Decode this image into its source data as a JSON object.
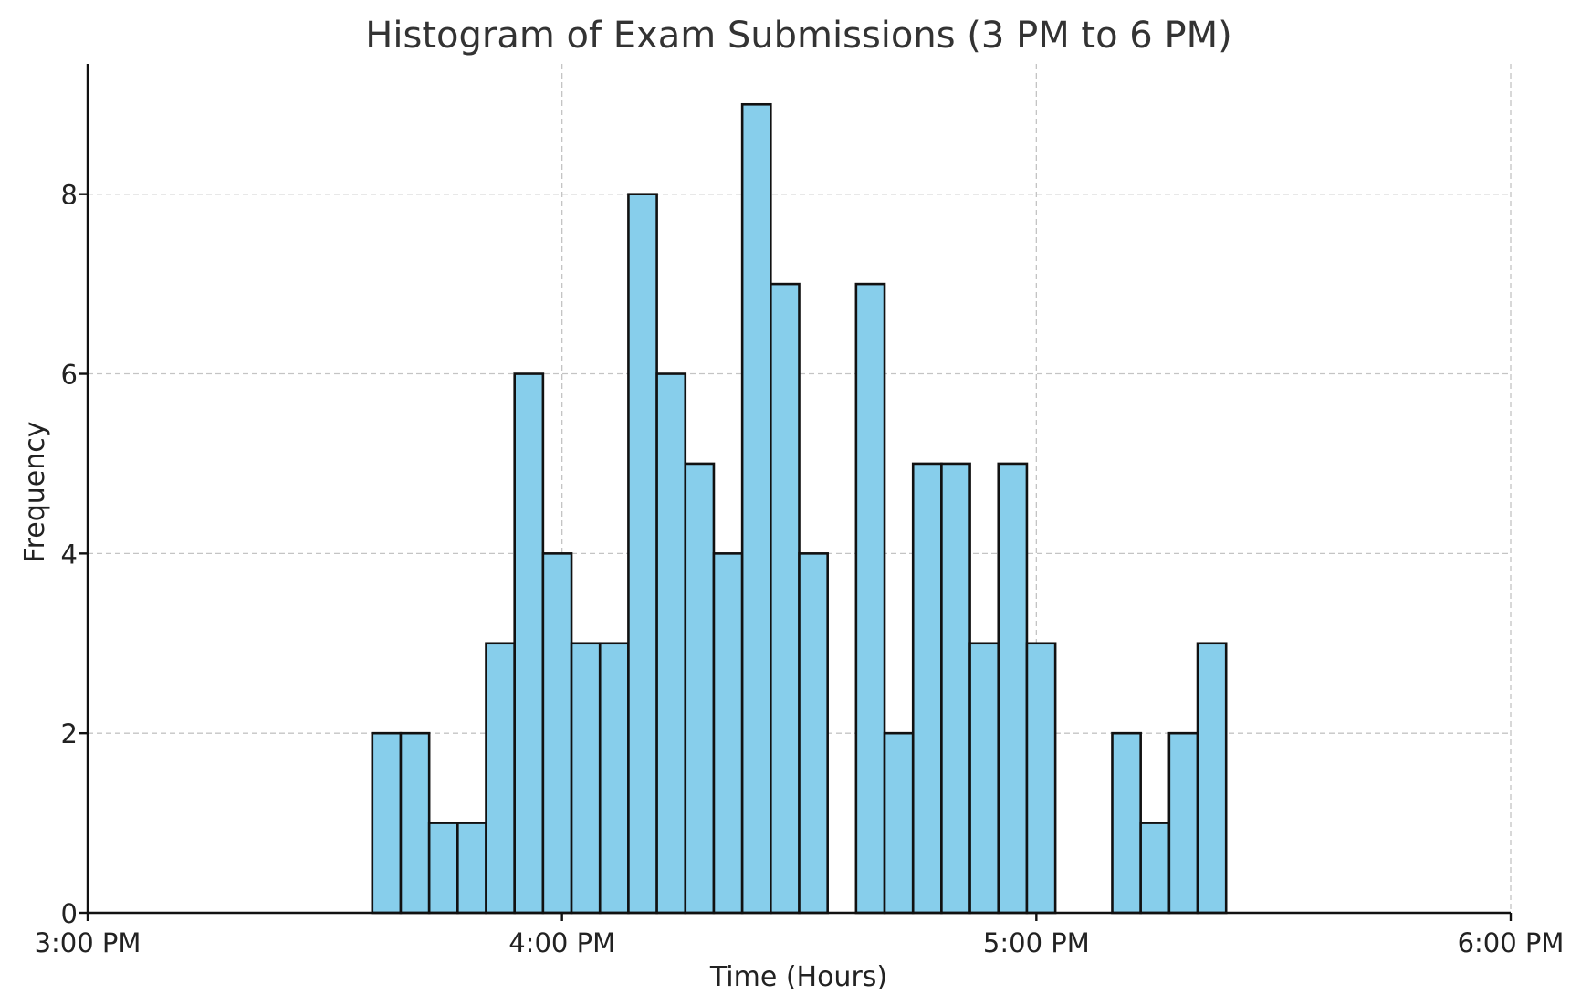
{
  "chart_data": {
    "type": "bar",
    "title": "Histogram of Exam Submissions (3 PM to 6 PM)",
    "xlabel": "Time (Hours)",
    "ylabel": "Frequency",
    "x_tick_labels": [
      "3:00 PM",
      "4:00 PM",
      "5:00 PM",
      "6:00 PM"
    ],
    "y_tick_labels": [
      "0",
      "2",
      "4",
      "6",
      "8"
    ],
    "xlim": [
      "15:00",
      "18:00"
    ],
    "ylim": [
      0,
      9.45
    ],
    "bin_width_minutes": 3.6,
    "bins": [
      {
        "start": "15:36",
        "count": 2
      },
      {
        "start": "15:39.6",
        "count": 2
      },
      {
        "start": "15:43.2",
        "count": 1
      },
      {
        "start": "15:46.8",
        "count": 1
      },
      {
        "start": "15:50.4",
        "count": 3
      },
      {
        "start": "15:54",
        "count": 6
      },
      {
        "start": "15:57.6",
        "count": 4
      },
      {
        "start": "16:01.2",
        "count": 3
      },
      {
        "start": "16:04.8",
        "count": 3
      },
      {
        "start": "16:08.4",
        "count": 8
      },
      {
        "start": "16:12",
        "count": 6
      },
      {
        "start": "16:15.6",
        "count": 5
      },
      {
        "start": "16:19.2",
        "count": 4
      },
      {
        "start": "16:22.8",
        "count": 9
      },
      {
        "start": "16:26.4",
        "count": 7
      },
      {
        "start": "16:30",
        "count": 4
      },
      {
        "start": "16:33.6",
        "count": 0
      },
      {
        "start": "16:37.2",
        "count": 7
      },
      {
        "start": "16:40.8",
        "count": 2
      },
      {
        "start": "16:44.4",
        "count": 5
      },
      {
        "start": "16:48",
        "count": 5
      },
      {
        "start": "16:51.6",
        "count": 3
      },
      {
        "start": "16:55.2",
        "count": 5
      },
      {
        "start": "16:58.8",
        "count": 3
      },
      {
        "start": "17:02.4",
        "count": 0
      },
      {
        "start": "17:06",
        "count": 0
      },
      {
        "start": "17:09.6",
        "count": 2
      },
      {
        "start": "17:13.2",
        "count": 1
      },
      {
        "start": "17:16.8",
        "count": 2
      },
      {
        "start": "17:20.4",
        "count": 3
      }
    ],
    "grid": true,
    "colors": {
      "bar_fill": "#87ceeb",
      "bar_edge": "#111111",
      "grid": "#c4c4c4"
    }
  }
}
